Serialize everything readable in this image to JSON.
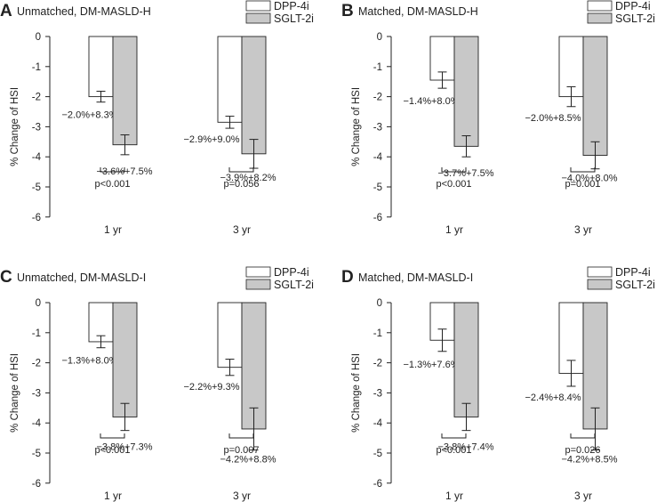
{
  "legend": {
    "labels": [
      "DPP-4i",
      "SGLT-2i"
    ],
    "colors": [
      "#ffffff",
      "#c8c8c8"
    ]
  },
  "chart_data": [
    {
      "type": "bar",
      "letter": "A",
      "title": "Unmatched, DM-MASLD-H",
      "ylabel": "% Change of HSI",
      "ylim": [
        -6,
        0
      ],
      "yticks": [
        "0",
        "-1",
        "-2",
        "-3",
        "-4",
        "-5",
        "-6"
      ],
      "categories": [
        "1 yr",
        "3 yr"
      ],
      "series": [
        {
          "name": "DPP-4i",
          "values": [
            -2.0,
            -2.85
          ],
          "errors": [
            0.18,
            0.2
          ],
          "labels": [
            "−2.0%+8.3%",
            "−2.9%+9.0%"
          ]
        },
        {
          "name": "SGLT-2i",
          "values": [
            -3.6,
            -3.9
          ],
          "errors": [
            0.33,
            0.48
          ],
          "labels": [
            "−3.6%+7.5%",
            "−3.9%+8.2%"
          ]
        }
      ],
      "pvalues": [
        "p<0.001",
        "p=0.056"
      ]
    },
    {
      "type": "bar",
      "letter": "B",
      "title": "Matched, DM-MASLD-H",
      "ylabel": "% Change of HSI",
      "ylim": [
        -6,
        0
      ],
      "yticks": [
        "0",
        "-1",
        "-2",
        "-3",
        "-4",
        "-5",
        "-6"
      ],
      "categories": [
        "1 yr",
        "3 yr"
      ],
      "series": [
        {
          "name": "DPP-4i",
          "values": [
            -1.45,
            -2.0
          ],
          "errors": [
            0.27,
            0.33
          ],
          "labels": [
            "−1.4%+8.0%",
            "−2.0%+8.5%"
          ]
        },
        {
          "name": "SGLT-2i",
          "values": [
            -3.65,
            -3.95
          ],
          "errors": [
            0.35,
            0.45
          ],
          "labels": [
            "−3.7%+7.5%",
            "−4.0%+8.0%"
          ]
        }
      ],
      "pvalues": [
        "p<0.001",
        "p=0.001"
      ]
    },
    {
      "type": "bar",
      "letter": "C",
      "title": "Unmatched, DM-MASLD-I",
      "ylabel": "% Change of HSI",
      "ylim": [
        -6,
        0
      ],
      "yticks": [
        "0",
        "-1",
        "-2",
        "-3",
        "-4",
        "-5",
        "-6"
      ],
      "categories": [
        "1 yr",
        "3 yr"
      ],
      "series": [
        {
          "name": "DPP-4i",
          "values": [
            -1.3,
            -2.15
          ],
          "errors": [
            0.2,
            0.27
          ],
          "labels": [
            "−1.3%+8.0%",
            "−2.2%+9.3%"
          ]
        },
        {
          "name": "SGLT-2i",
          "values": [
            -3.8,
            -4.2
          ],
          "errors": [
            0.45,
            0.7
          ],
          "labels": [
            "−3.8%+7.3%",
            "−4.2%+8.8%"
          ]
        }
      ],
      "pvalues": [
        "p<0.001",
        "p=0.007"
      ]
    },
    {
      "type": "bar",
      "letter": "D",
      "title": "Matched, DM-MASLD-I",
      "ylabel": "% Change of HSI",
      "ylim": [
        -6,
        0
      ],
      "yticks": [
        "0",
        "-1",
        "-2",
        "-3",
        "-4",
        "-5",
        "-6"
      ],
      "categories": [
        "1 yr",
        "3 yr"
      ],
      "series": [
        {
          "name": "DPP-4i",
          "values": [
            -1.25,
            -2.35
          ],
          "errors": [
            0.37,
            0.43
          ],
          "labels": [
            "−1.3%+7.6%",
            "−2.4%+8.4%"
          ]
        },
        {
          "name": "SGLT-2i",
          "values": [
            -3.8,
            -4.2
          ],
          "errors": [
            0.45,
            0.7
          ],
          "labels": [
            "−3.8%+7.4%",
            "−4.2%+8.5%"
          ]
        }
      ],
      "pvalues": [
        "p<0.001",
        "p=0.026"
      ]
    }
  ]
}
